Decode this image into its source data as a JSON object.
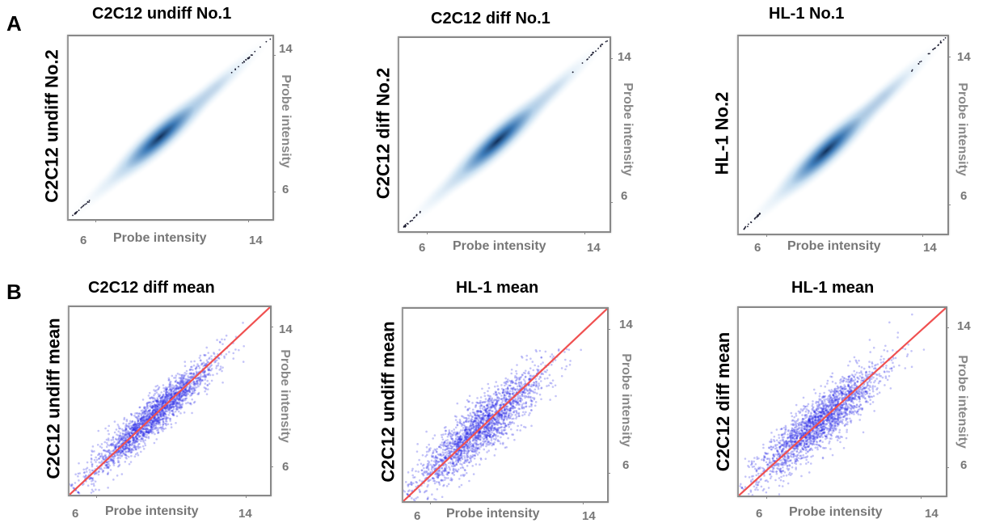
{
  "panel_labels": {
    "a": "A",
    "b": "B"
  },
  "colors": {
    "density_dark": "#0b2a55",
    "density_mid": "#2f72b4",
    "density_light": "#bcd8ee",
    "scatter_point": "#2a2ae6",
    "identity_line": "#f05050",
    "axis_text": "#777777"
  },
  "chart_data": [
    {
      "type": "heatmap",
      "panel": "A",
      "title": "C2C12 undiff No.1",
      "ylabel": "C2C12 undiff No.2",
      "xlabel": "Probe intensity",
      "ylabel_right": "Probe intensity",
      "xlim": [
        4.5,
        15.2
      ],
      "ylim": [
        4.5,
        15.2
      ],
      "xticks": [
        6,
        14
      ],
      "yticks": [
        6,
        14
      ],
      "density_peak": [
        9.3,
        9.3
      ]
    },
    {
      "type": "heatmap",
      "panel": "A",
      "title": "C2C12 diff  No.1",
      "ylabel": "C2C12 diff No.2",
      "xlabel": "Probe intensity",
      "ylabel_right": "Probe intensity",
      "xlim": [
        4.5,
        15.2
      ],
      "ylim": [
        4.5,
        15.2
      ],
      "xticks": [
        6,
        14
      ],
      "yticks": [
        6,
        14
      ],
      "density_peak": [
        9.5,
        9.5
      ]
    },
    {
      "type": "heatmap",
      "panel": "A",
      "title": "HL-1 No.1",
      "ylabel": "HL-1 No.2",
      "xlabel": "Probe intensity",
      "ylabel_right": "Probe intensity",
      "xlim": [
        4.5,
        15.2
      ],
      "ylim": [
        4.5,
        15.2
      ],
      "xticks": [
        6,
        14
      ],
      "yticks": [
        6,
        14
      ],
      "density_peak": [
        9.0,
        9.0
      ]
    },
    {
      "type": "scatter",
      "panel": "B",
      "title": "C2C12 diff mean",
      "ylabel": "C2C12 undiff mean",
      "xlabel": "Probe intensity",
      "ylabel_right": "Probe intensity",
      "xlim": [
        4.5,
        15.2
      ],
      "ylim": [
        4.5,
        15.2
      ],
      "xticks": [
        6,
        14
      ],
      "yticks": [
        6,
        14
      ],
      "identity_line": [
        [
          4.5,
          4.5
        ],
        [
          15.2,
          15.2
        ]
      ],
      "spread": 0.55,
      "center": 9.0
    },
    {
      "type": "scatter",
      "panel": "B",
      "title": "HL-1 mean",
      "ylabel": "C2C12 undiff mean",
      "xlabel": "Probe intensity",
      "ylabel_right": "Probe intensity",
      "xlim": [
        4.5,
        15.2
      ],
      "ylim": [
        4.5,
        15.2
      ],
      "xticks": [
        6,
        14
      ],
      "yticks": [
        6,
        14
      ],
      "identity_line": [
        [
          4.5,
          4.5
        ],
        [
          15.2,
          15.2
        ]
      ],
      "spread": 0.8,
      "center": 8.5
    },
    {
      "type": "scatter",
      "panel": "B",
      "title": "HL-1 mean",
      "ylabel": "C2C12 diff mean",
      "xlabel": "Probe intensity",
      "ylabel_right": "Probe intensity",
      "xlim": [
        4.5,
        15.2
      ],
      "ylim": [
        4.5,
        15.2
      ],
      "xticks": [
        6,
        14
      ],
      "yticks": [
        6,
        14
      ],
      "identity_line": [
        [
          4.5,
          4.5
        ],
        [
          15.2,
          15.2
        ]
      ],
      "spread": 0.75,
      "center": 8.7
    }
  ]
}
